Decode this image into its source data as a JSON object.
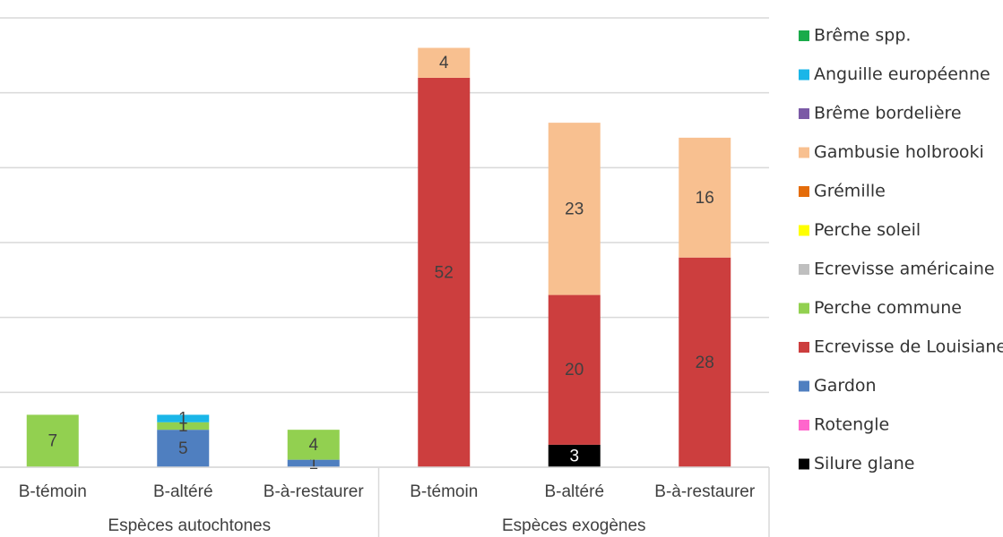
{
  "chart_data": {
    "type": "stacked_bar",
    "groups": [
      {
        "label": "Espèces autochtones",
        "categories": [
          "B-témoin",
          "B-altéré",
          "B-à-restaurer"
        ]
      },
      {
        "label": "Espèces exogènes",
        "categories": [
          "B-témoin",
          "B-altéré",
          "B-à-restaurer"
        ]
      }
    ],
    "ylim": [
      0,
      60
    ],
    "yticks": [
      0,
      10,
      20,
      30,
      40,
      50,
      60
    ],
    "grid": true,
    "series": [
      {
        "name": "Brême spp.",
        "color": "#1aab4a",
        "values": [
          null,
          null,
          null,
          null,
          null,
          null
        ]
      },
      {
        "name": "Anguille européenne",
        "color": "#1ab6e8",
        "values": [
          null,
          1,
          null,
          null,
          null,
          null
        ]
      },
      {
        "name": "Brême bordelière",
        "color": "#7b5aa6",
        "values": [
          null,
          null,
          null,
          null,
          null,
          null
        ]
      },
      {
        "name": "Gambusie holbrooki",
        "color": "#f8c090",
        "values": [
          null,
          null,
          null,
          4,
          23,
          16
        ]
      },
      {
        "name": "Grémille",
        "color": "#e46c0a",
        "values": [
          null,
          null,
          null,
          null,
          null,
          null
        ]
      },
      {
        "name": "Perche soleil",
        "color": "#ffff00",
        "values": [
          null,
          null,
          null,
          null,
          null,
          null
        ]
      },
      {
        "name": "Ecrevisse américaine",
        "color": "#bfbfbf",
        "values": [
          null,
          null,
          null,
          null,
          null,
          null
        ]
      },
      {
        "name": "Perche commune",
        "color": "#92d050",
        "values": [
          7,
          1,
          4,
          null,
          null,
          null
        ]
      },
      {
        "name": "Ecrevisse de Louisiane",
        "color": "#cc3e3e",
        "values": [
          null,
          null,
          null,
          52,
          20,
          28
        ]
      },
      {
        "name": "Gardon",
        "color": "#4f7fc0",
        "values": [
          null,
          5,
          1,
          null,
          null,
          null
        ]
      },
      {
        "name": "Rotengle",
        "color": "#ff66cc",
        "values": [
          null,
          null,
          null,
          null,
          null,
          null
        ]
      },
      {
        "name": "Silure glane",
        "color": "#000000",
        "values": [
          null,
          null,
          null,
          null,
          3,
          null
        ]
      }
    ]
  }
}
